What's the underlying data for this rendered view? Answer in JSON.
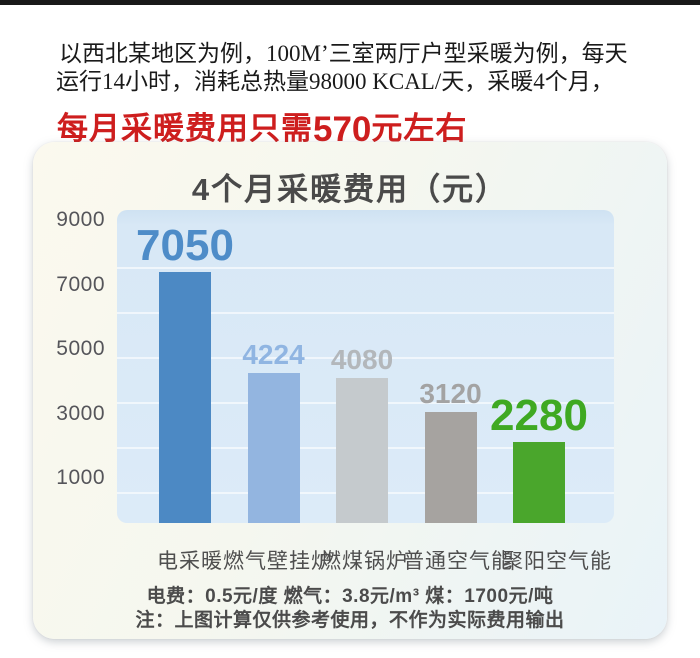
{
  "intro": {
    "line1": "以西北某地区为例，100M’三室两厅户型采暖为例，每天",
    "line2": "运行14小时，消耗总热量98000 KCAL/天，采暖4个月，",
    "highlight_prefix": "每月采暖费用只需",
    "highlight_number": "570",
    "highlight_suffix": "元左右",
    "highlight_color": "#ce1e1e"
  },
  "chart_data": {
    "type": "bar",
    "title": "4个月采暖费用（元）",
    "categories": [
      "电采暖",
      "燃气壁挂炉",
      "燃煤锅炉",
      "普通空气能",
      "聚阳空气能"
    ],
    "values": [
      7050,
      4224,
      4080,
      3120,
      2280
    ],
    "bar_colors": [
      "#4c89c4",
      "#93b5e0",
      "#c5cacd",
      "#a6a3a0",
      "#4aa62c"
    ],
    "value_label_colors": [
      "#4e8cc8",
      "#90b5e2",
      "#b3b7bb",
      "#a3a3a3",
      "#3fa922"
    ],
    "emphasized_indices": [
      0,
      4
    ],
    "yticks": [
      9000,
      7000,
      5000,
      3000,
      1000
    ],
    "ylim": [
      0,
      9600
    ],
    "grid": true,
    "legend_position": "none",
    "plot_bg": "#d9e8f6",
    "xlabel": "",
    "ylabel": ""
  },
  "panel": {
    "price_note": "电费：0.5元/度  燃气：3.8元/m³  煤：1700元/吨",
    "disclaimer": "注：上图计算仅供参考使用，不作为实际费用输出"
  }
}
